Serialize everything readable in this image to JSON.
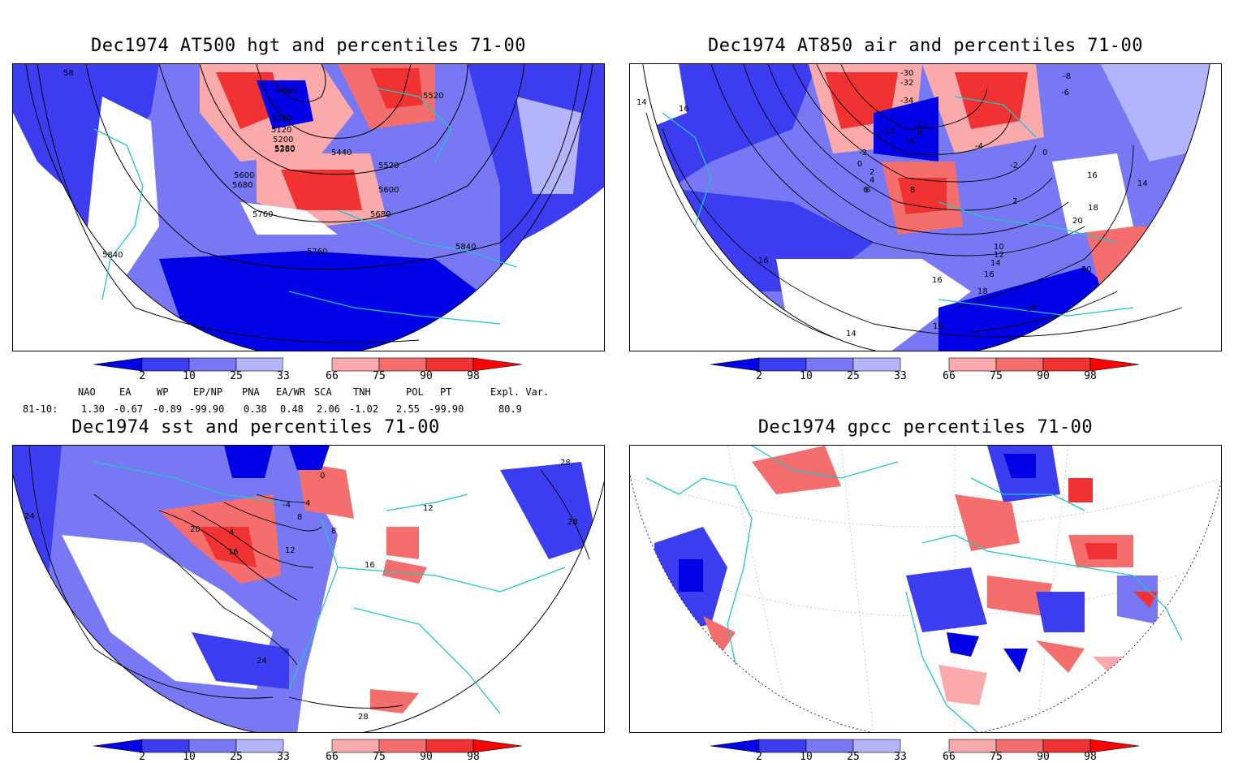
{
  "panels": [
    {
      "id": "p1",
      "title": "Dec1974 AT500 hgt and percentiles 71-00",
      "contour_labels": [
        "4960",
        "5040",
        "5120",
        "5200",
        "5280",
        "5360",
        "5440",
        "5520",
        "5600",
        "5680",
        "5760",
        "5840",
        "5520",
        "5600",
        "5680",
        "5760",
        "5840",
        "58"
      ]
    },
    {
      "id": "p2",
      "title": "Dec1974 AT850 air and percentiles 71-00",
      "contour_labels": [
        "-30",
        "-32",
        "-34",
        "-12",
        "-10",
        "-8",
        "-6",
        "-2",
        "0",
        "2",
        "4",
        "6",
        "8",
        "10",
        "12",
        "14",
        "16",
        "18",
        "20",
        "-8",
        "-6",
        "-4",
        "0",
        "-2",
        "2",
        "14",
        "16",
        "16",
        "18",
        "20",
        "16",
        "18",
        "16",
        "14",
        "14",
        "16",
        "6"
      ]
    },
    {
      "id": "p3",
      "title": "Dec1974 sst and percentiles 71-00",
      "contour_labels": [
        "24",
        "20",
        "16",
        "12",
        "8",
        "4",
        "0",
        "-4",
        "4",
        "8",
        "16",
        "24",
        "28",
        "28",
        "28",
        "12"
      ]
    },
    {
      "id": "p4",
      "title": "Dec1974 gpcc percentiles 71-00",
      "contour_labels": []
    }
  ],
  "colorbar": {
    "ticks": [
      "2",
      "10",
      "25",
      "33",
      "66",
      "75",
      "90",
      "98"
    ],
    "colors": {
      "b1": "#0000e6",
      "b2": "#3c3cf0",
      "b3": "#7878f5",
      "b4": "#b4b4fa",
      "r1": "#faaaaa",
      "r2": "#f56e6e",
      "r3": "#f03232",
      "r4": "#ff0000"
    }
  },
  "indices": {
    "header": [
      "NAO",
      "EA",
      "WP",
      "EP/NP",
      "PNA",
      "EA/WR",
      "SCA",
      "TNH",
      "POL",
      "PT",
      "Expl. Var."
    ],
    "row_label": "81-10:",
    "values": [
      "1.30",
      "-0.67",
      "-0.89",
      "-99.90",
      "0.38",
      "0.48",
      "2.06",
      "-1.02",
      "2.55",
      "-99.90",
      "80.9"
    ]
  },
  "map_colors": {
    "coast": "#1ec8c8",
    "contour": "#000000",
    "grid": "#aaaaaa"
  }
}
